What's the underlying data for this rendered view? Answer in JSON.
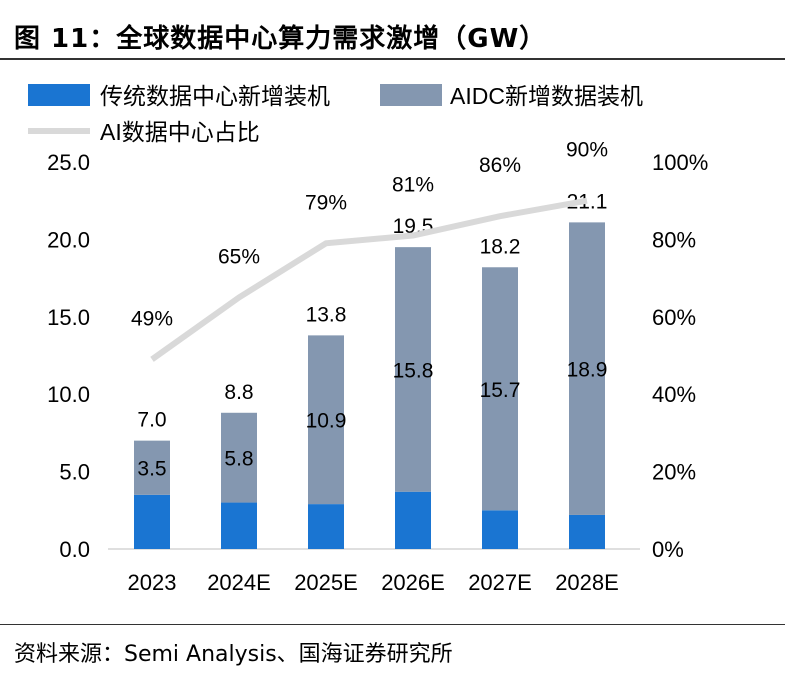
{
  "title": "图 11：全球数据中心算力需求激增（GW）",
  "source": "资料来源：Semi Analysis、国海证券研究所",
  "colors": {
    "traditional": "#1a75d2",
    "aidc": "#8497b0",
    "line": "#d9d9d9"
  },
  "chart_data": {
    "type": "bar",
    "stacked": true,
    "categories": [
      "2023",
      "2024E",
      "2025E",
      "2026E",
      "2027E",
      "2028E"
    ],
    "series": [
      {
        "name": "传统数据中心新增装机",
        "values": [
          3.5,
          3.0,
          2.9,
          3.7,
          2.5,
          2.2
        ]
      },
      {
        "name": "AIDC新增数据装机",
        "values": [
          3.5,
          5.8,
          10.9,
          15.8,
          15.7,
          18.9
        ]
      }
    ],
    "totals": [
      7.0,
      8.8,
      13.8,
      19.5,
      18.2,
      21.1
    ],
    "line": {
      "name": "AI数据中心占比",
      "axis": "right",
      "values": [
        49,
        65,
        79,
        81,
        86,
        90
      ],
      "labels": [
        "49%",
        "65%",
        "79%",
        "81%",
        "86%",
        "90%"
      ]
    },
    "ylim": [
      0,
      25
    ],
    "yticks": [
      "0.0",
      "5.0",
      "10.0",
      "15.0",
      "20.0",
      "25.0"
    ],
    "y2lim": [
      0,
      100
    ],
    "y2ticks": [
      "0%",
      "20%",
      "40%",
      "60%",
      "80%",
      "100%"
    ],
    "legend_position": "top-left"
  }
}
